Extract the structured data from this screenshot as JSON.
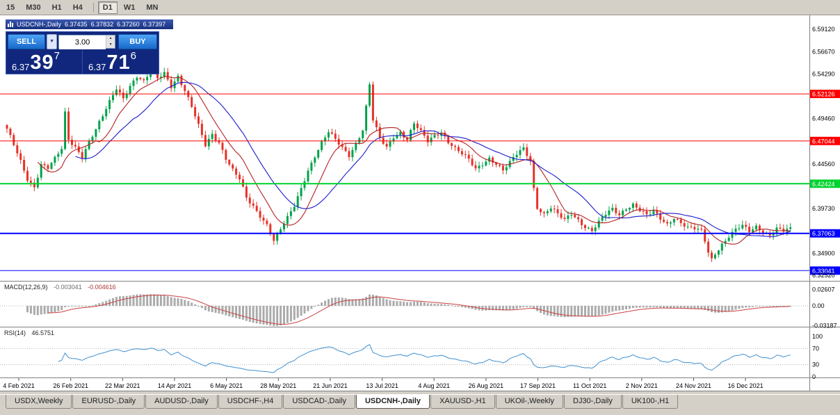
{
  "colors": {
    "window_bg": "#d4d0c8",
    "chart_bg": "#ffffff",
    "panel_border": "#808080",
    "bull": "#00a24a",
    "bear": "#e53329",
    "ma_fast": "#b22222",
    "ma_slow": "#1a1acc",
    "macd_hist": "#ababab",
    "macd_signal": "#c94040",
    "rsi": "#3e8fd0",
    "hline_red": "#ff0000",
    "hline_green": "#00d22d",
    "hline_blue": "#0000ff",
    "trade_navy": "#11277d",
    "button_blue": "#1769c9"
  },
  "toolbar": {
    "items": [
      {
        "label": "15"
      },
      {
        "label": "M30"
      },
      {
        "label": "H1"
      },
      {
        "label": "H4"
      },
      {
        "sep": true
      },
      {
        "label": "D1",
        "active": true
      },
      {
        "label": "W1"
      },
      {
        "label": "MN"
      }
    ]
  },
  "chart_title": {
    "symbol": "USDCNH-,Daily",
    "open": "6.37435",
    "high": "6.37832",
    "low": "6.37260",
    "close": "6.37397"
  },
  "trade_panel": {
    "sell_label": "SELL",
    "buy_label": "BUY",
    "volume": "3.00",
    "bid": {
      "prefix": "6.37",
      "big": "39",
      "sup": "7"
    },
    "ask": {
      "prefix": "6.37",
      "big": "71",
      "sup": "6"
    }
  },
  "price_axis": {
    "labels": [
      {
        "text": "6.59120",
        "price": 6.5912
      },
      {
        "text": "6.56670",
        "price": 6.5667
      },
      {
        "text": "6.54290",
        "price": 6.5429
      },
      {
        "text": "6.49460",
        "price": 6.4946
      },
      {
        "text": "6.44560",
        "price": 6.4456
      },
      {
        "text": "6.39730",
        "price": 6.3973
      },
      {
        "text": "6.34900",
        "price": 6.349
      },
      {
        "text": "6.32520",
        "price": 6.3252
      }
    ]
  },
  "hlines": [
    {
      "label": "6.52126",
      "price": 6.52126,
      "color": "#ff0000",
      "width": 1
    },
    {
      "label": "6.47044",
      "price": 6.47044,
      "color": "#ff0000",
      "width": 1
    },
    {
      "label": "6.42424",
      "price": 6.42424,
      "color": "#00d22d",
      "width": 2
    },
    {
      "label": "6.37063",
      "price": 6.37063,
      "color": "#0000ff",
      "width": 2
    },
    {
      "label": "6.33041",
      "price": 6.33041,
      "color": "#0000ff",
      "width": 1
    }
  ],
  "macd_panel": {
    "label": "MACD(12,26,9)",
    "value1": "-0.003041",
    "value2": "-0.004616",
    "axis": [
      {
        "text": "0.02607",
        "v": 0.02607
      },
      {
        "text": "0.00",
        "v": 0
      },
      {
        "text": "-0.03187",
        "v": -0.03187
      }
    ]
  },
  "rsi_panel": {
    "label": "RSI(14)",
    "value": "46.5751",
    "axis": [
      {
        "text": "100",
        "v": 100
      },
      {
        "text": "70",
        "v": 70
      },
      {
        "text": "30",
        "v": 30
      },
      {
        "text": "0",
        "v": 0
      }
    ],
    "levels": [
      70,
      30
    ]
  },
  "x_axis": {
    "labels": [
      "4 Feb 2021",
      "26 Feb 2021",
      "22 Mar 2021",
      "14 Apr 2021",
      "6 May 2021",
      "28 May 2021",
      "21 Jun 2021",
      "13 Jul 2021",
      "4 Aug 2021",
      "26 Aug 2021",
      "17 Sep 2021",
      "11 Oct 2021",
      "2 Nov 2021",
      "24 Nov 2021",
      "16 Dec 2021"
    ]
  },
  "tabs": [
    {
      "label": "USDX,Weekly"
    },
    {
      "label": "EURUSD-,Daily"
    },
    {
      "label": "AUDUSD-,Daily"
    },
    {
      "label": "USDCHF-,H4"
    },
    {
      "label": "USDCAD-,Daily"
    },
    {
      "label": "USDCNH-,Daily",
      "active": true
    },
    {
      "label": "XAUUSD-,H1"
    },
    {
      "label": "UKOil-,Weekly"
    },
    {
      "label": "DJ30-,Daily"
    },
    {
      "label": "UK100-,H1"
    }
  ],
  "chart_data": {
    "type": "candlestick",
    "symbol": "USDCNH",
    "timeframe": "Daily",
    "x_range": "Feb 2021 - Dec 2021",
    "price_axis_range": [
      6.3194,
      6.6062
    ],
    "candles": 230,
    "ohlc_current": {
      "open": 6.37435,
      "high": 6.37832,
      "low": 6.3726,
      "close": 6.37397
    },
    "levels": [
      6.52126,
      6.47044,
      6.42424,
      6.37063,
      6.33041
    ],
    "indicators": [
      {
        "name": "MACD",
        "params": "12,26,9",
        "values": [
          -0.003041,
          -0.004616
        ],
        "axis_range": [
          -0.03187,
          0.02607
        ]
      },
      {
        "name": "RSI",
        "params": "14",
        "value": 46.5751,
        "axis_range": [
          0,
          100
        ],
        "levels": [
          30,
          70
        ]
      },
      {
        "name": "MA-fast",
        "color": "red"
      },
      {
        "name": "MA-slow",
        "color": "blue"
      }
    ],
    "close_anchors": [
      [
        0,
        6.482
      ],
      [
        2,
        6.465
      ],
      [
        4,
        6.448
      ],
      [
        6,
        6.43
      ],
      [
        8,
        6.422
      ],
      [
        10,
        6.446
      ],
      [
        12,
        6.441
      ],
      [
        14,
        6.45
      ],
      [
        16,
        6.461
      ],
      [
        17,
        6.5
      ],
      [
        18,
        6.472
      ],
      [
        20,
        6.465
      ],
      [
        22,
        6.455
      ],
      [
        24,
        6.47
      ],
      [
        26,
        6.482
      ],
      [
        28,
        6.496
      ],
      [
        30,
        6.512
      ],
      [
        32,
        6.528
      ],
      [
        34,
        6.518
      ],
      [
        36,
        6.531
      ],
      [
        38,
        6.54
      ],
      [
        40,
        6.533
      ],
      [
        42,
        6.544
      ],
      [
        44,
        6.538
      ],
      [
        46,
        6.545
      ],
      [
        48,
        6.531
      ],
      [
        50,
        6.541
      ],
      [
        52,
        6.524
      ],
      [
        54,
        6.506
      ],
      [
        56,
        6.486
      ],
      [
        58,
        6.466
      ],
      [
        60,
        6.479
      ],
      [
        62,
        6.47
      ],
      [
        64,
        6.452
      ],
      [
        66,
        6.438
      ],
      [
        68,
        6.428
      ],
      [
        70,
        6.408
      ],
      [
        72,
        6.4
      ],
      [
        74,
        6.391
      ],
      [
        76,
        6.381
      ],
      [
        78,
        6.363
      ],
      [
        80,
        6.374
      ],
      [
        82,
        6.386
      ],
      [
        84,
        6.4
      ],
      [
        86,
        6.42
      ],
      [
        88,
        6.44
      ],
      [
        90,
        6.455
      ],
      [
        92,
        6.468
      ],
      [
        94,
        6.479
      ],
      [
        96,
        6.471
      ],
      [
        98,
        6.463
      ],
      [
        100,
        6.456
      ],
      [
        102,
        6.469
      ],
      [
        104,
        6.483
      ],
      [
        106,
        6.531
      ],
      [
        107,
        6.492
      ],
      [
        109,
        6.472
      ],
      [
        111,
        6.463
      ],
      [
        113,
        6.476
      ],
      [
        115,
        6.481
      ],
      [
        117,
        6.473
      ],
      [
        119,
        6.489
      ],
      [
        121,
        6.479
      ],
      [
        123,
        6.469
      ],
      [
        125,
        6.476
      ],
      [
        127,
        6.481
      ],
      [
        129,
        6.471
      ],
      [
        131,
        6.463
      ],
      [
        133,
        6.456
      ],
      [
        135,
        6.449
      ],
      [
        137,
        6.439
      ],
      [
        139,
        6.446
      ],
      [
        141,
        6.453
      ],
      [
        143,
        6.447
      ],
      [
        145,
        6.439
      ],
      [
        147,
        6.446
      ],
      [
        149,
        6.455
      ],
      [
        151,
        6.462
      ],
      [
        153,
        6.45
      ],
      [
        154,
        6.42
      ],
      [
        155,
        6.4
      ],
      [
        157,
        6.392
      ],
      [
        159,
        6.398
      ],
      [
        161,
        6.39
      ],
      [
        163,
        6.384
      ],
      [
        165,
        6.392
      ],
      [
        167,
        6.386
      ],
      [
        169,
        6.379
      ],
      [
        171,
        6.374
      ],
      [
        173,
        6.382
      ],
      [
        175,
        6.39
      ],
      [
        177,
        6.396
      ],
      [
        179,
        6.391
      ],
      [
        181,
        6.399
      ],
      [
        183,
        6.403
      ],
      [
        185,
        6.396
      ],
      [
        187,
        6.389
      ],
      [
        189,
        6.393
      ],
      [
        191,
        6.386
      ],
      [
        193,
        6.381
      ],
      [
        195,
        6.389
      ],
      [
        197,
        6.383
      ],
      [
        199,
        6.3765
      ],
      [
        201,
        6.3745
      ],
      [
        203,
        6.372
      ],
      [
        204,
        6.362
      ],
      [
        205,
        6.35
      ],
      [
        206,
        6.343
      ],
      [
        207,
        6.35
      ],
      [
        209,
        6.36
      ],
      [
        211,
        6.368
      ],
      [
        213,
        6.374
      ],
      [
        215,
        6.3775
      ],
      [
        217,
        6.372
      ],
      [
        219,
        6.378
      ],
      [
        221,
        6.374
      ],
      [
        223,
        6.37
      ],
      [
        225,
        6.376
      ],
      [
        227,
        6.3725
      ],
      [
        229,
        6.374
      ]
    ]
  }
}
